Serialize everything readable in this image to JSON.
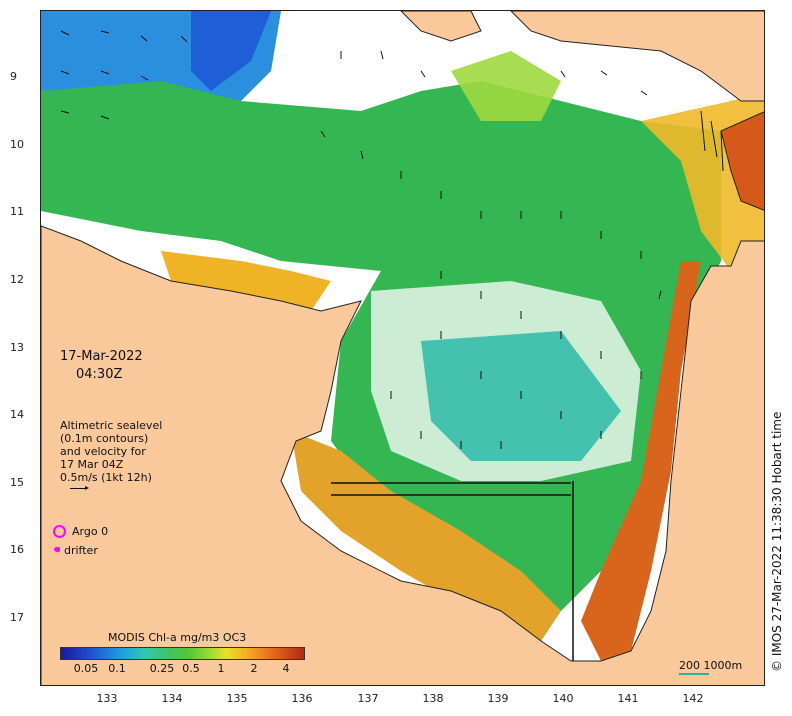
{
  "map": {
    "date": "17-Mar-2022",
    "time": "04:30Z",
    "altimetry_lines": [
      "Altimetric sealevel",
      "(0.1m contours)",
      "and velocity for",
      "17 Mar 04Z",
      "0.5m/s (1kt 12h)"
    ],
    "argo_label": "Argo 0",
    "argo_color": "#ff00ff",
    "drifter_label": "drifter",
    "drifter_color": "#ff00ff",
    "land_color": "#f9c89b",
    "colorbar_title": "MODIS Chl-a mg/m3 OC3",
    "colorbar_ticks": [
      "0.05",
      "0.1",
      "0.25",
      "0.5",
      "1",
      "2",
      "4"
    ],
    "scale_bar_label": "200  1000m",
    "scale_bar_color": "#2ab3a0",
    "credit": "© IMOS 27-Mar-2022 11:38:30 Hobart time",
    "lat_ticks": [
      "9",
      "10",
      "11",
      "12",
      "13",
      "14",
      "15",
      "16",
      "17"
    ],
    "lon_ticks": [
      "133",
      "134",
      "135",
      "136",
      "137",
      "138",
      "139",
      "140",
      "141",
      "142"
    ]
  }
}
